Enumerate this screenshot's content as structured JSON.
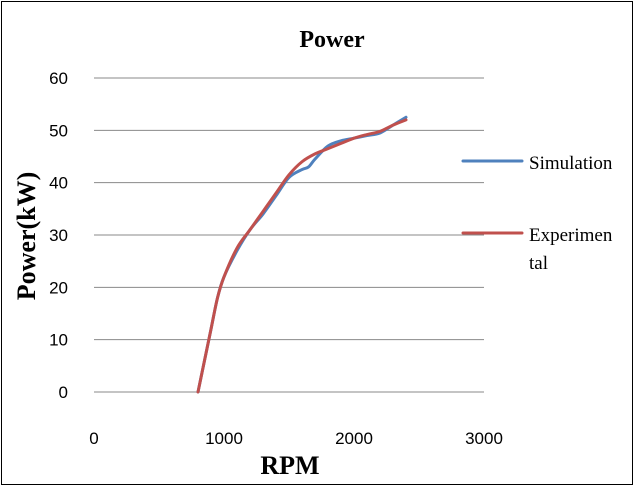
{
  "chart_data": {
    "type": "line",
    "title": "Power",
    "xlabel": "RPM",
    "ylabel": "Power(kW)",
    "xlim": [
      0,
      3000
    ],
    "ylim": [
      0,
      60
    ],
    "x_ticks": [
      0,
      1000,
      2000,
      3000
    ],
    "y_ticks": [
      0,
      10,
      20,
      30,
      40,
      50,
      60
    ],
    "grid": "horizontal",
    "legend_position": "right",
    "series": [
      {
        "name": "Simulation",
        "color": "#4F81BD",
        "x": [
          800,
          850,
          900,
          950,
          1000,
          1100,
          1200,
          1300,
          1400,
          1500,
          1600,
          1650,
          1700,
          1800,
          1900,
          2000,
          2100,
          2200,
          2300,
          2400
        ],
        "y": [
          0,
          6,
          12,
          18,
          22,
          27,
          31,
          34,
          37.5,
          41,
          42.5,
          43,
          44.5,
          47,
          48,
          48.5,
          49,
          49.5,
          51,
          52.5
        ]
      },
      {
        "name": "Experimental",
        "color": "#C0504D",
        "x": [
          800,
          850,
          900,
          950,
          1000,
          1100,
          1200,
          1300,
          1400,
          1500,
          1600,
          1700,
          1800,
          1900,
          2000,
          2100,
          2200,
          2300,
          2400
        ],
        "y": [
          0,
          6,
          12,
          18,
          22,
          27.5,
          31,
          34.5,
          38,
          41.5,
          44,
          45.5,
          46.5,
          47.5,
          48.5,
          49.2,
          49.8,
          51,
          52
        ]
      }
    ],
    "legend": [
      {
        "label_lines": [
          "Simulation"
        ]
      },
      {
        "label_lines": [
          "Experimen",
          "tal"
        ]
      }
    ]
  }
}
